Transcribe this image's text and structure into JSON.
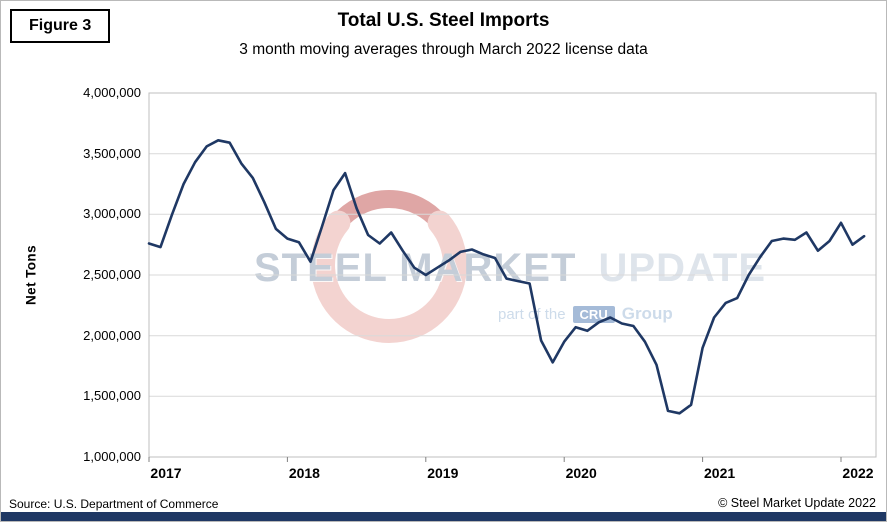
{
  "figure_label": "Figure 3",
  "title": "Total U.S. Steel Imports",
  "subtitle": "3 month moving averages through March 2022 license data",
  "footer": {
    "source": "Source: U.S. Department of Commerce",
    "copyright": "© Steel Market Update 2022"
  },
  "watermark": {
    "line1_part1": "STEEL MARKET",
    "line1_part2": "UPDATE",
    "line2_prefix": "part of the",
    "line2_badge": "CRU",
    "line2_suffix": "Group"
  },
  "colors": {
    "line": "#1f3864",
    "grid": "#d9d9d9",
    "plot_border": "#bfbfbf",
    "axis_tick": "#808080",
    "bottom_bar": "#1f3864",
    "watermark_red": "#c0504d",
    "watermark_pink": "#e8a8a2",
    "watermark_text": "#8b9db3",
    "watermark_text_light": "#bfcbd8",
    "watermark_blue": "#9db9d6",
    "cru_badge_bg": "#4d79b3"
  },
  "chart_data": {
    "type": "line",
    "title": "Total U.S. Steel Imports",
    "subtitle": "3 month moving averages through March 2022 license data",
    "xlabel": "",
    "ylabel": "Net Tons",
    "ylim": [
      1000000,
      4000000
    ],
    "y_tick_step": 500000,
    "y_ticks": [
      1000000,
      1500000,
      2000000,
      2500000,
      3000000,
      3500000,
      4000000
    ],
    "y_tick_labels": [
      "1,000,000",
      "1,500,000",
      "2,000,000",
      "2,500,000",
      "3,000,000",
      "3,500,000",
      "4,000,000"
    ],
    "x_tick_labels": [
      "2017",
      "2018",
      "2019",
      "2020",
      "2021",
      "2022"
    ],
    "x_tick_month_index": [
      0,
      12,
      24,
      36,
      48,
      60
    ],
    "x_start": "2017-01",
    "x_end": "2022-03",
    "frequency": "monthly",
    "grid": "horizontal",
    "legend": "none",
    "series": [
      {
        "name": "Total U.S. steel imports, 3-month moving average (net tons)",
        "color": "#1f3864",
        "values": [
          2760000,
          2730000,
          3000000,
          3250000,
          3430000,
          3560000,
          3610000,
          3590000,
          3420000,
          3300000,
          3100000,
          2880000,
          2800000,
          2770000,
          2610000,
          2900000,
          3200000,
          3340000,
          3050000,
          2830000,
          2760000,
          2850000,
          2700000,
          2560000,
          2500000,
          2560000,
          2620000,
          2690000,
          2710000,
          2670000,
          2640000,
          2470000,
          2450000,
          2430000,
          1960000,
          1780000,
          1950000,
          2070000,
          2040000,
          2110000,
          2150000,
          2100000,
          2080000,
          1950000,
          1760000,
          1380000,
          1360000,
          1430000,
          1900000,
          2150000,
          2270000,
          2310000,
          2500000,
          2650000,
          2780000,
          2800000,
          2790000,
          2850000,
          2700000,
          2780000,
          2930000,
          2750000,
          2820000
        ]
      }
    ]
  }
}
